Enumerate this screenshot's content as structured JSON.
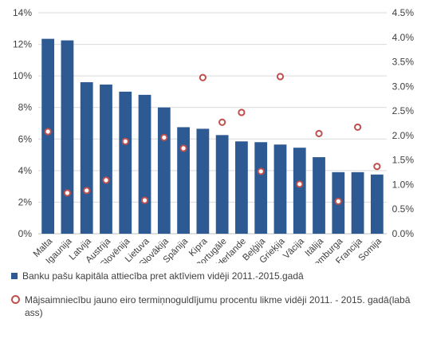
{
  "chart_data": {
    "type": "bar",
    "categories": [
      "Malta",
      "Igaunija",
      "Latvija",
      "Austrija",
      "Slovēnija",
      "Lietuva",
      "Slovākija",
      "Spānija",
      "Kipra",
      "Portugāle",
      "Nīderlande",
      "Beļģija",
      "Grieķija",
      "Vācija",
      "Itālija",
      "Luksemburga",
      "Francija",
      "Somija"
    ],
    "series": [
      {
        "name": "Banku pašu kapitāla attiecība pret aktīviem vidēji 2011.-2015.gadā",
        "kind": "bar",
        "axis": "left",
        "color": "#2e5a94",
        "values": [
          12.35,
          12.25,
          9.6,
          9.45,
          9.0,
          8.8,
          8.0,
          6.75,
          6.65,
          6.25,
          5.85,
          5.8,
          5.65,
          5.45,
          4.85,
          3.9,
          3.9,
          3.75
        ]
      },
      {
        "name": "Mājsaimniecību jauno eiro termiņnoguldījumu procentu likme vidēji 2011. - 2015. gadā(labā ass)",
        "kind": "marker",
        "axis": "right",
        "color": "#c0504d",
        "values": [
          2.08,
          0.83,
          0.88,
          1.09,
          1.88,
          0.68,
          1.96,
          1.74,
          3.18,
          2.27,
          2.47,
          1.27,
          3.2,
          1.01,
          2.04,
          0.66,
          2.17,
          1.37
        ]
      }
    ],
    "y_left": {
      "min": 0,
      "max": 14,
      "step": 2,
      "ticks": [
        "0%",
        "2%",
        "4%",
        "6%",
        "8%",
        "10%",
        "12%",
        "14%"
      ]
    },
    "y_right": {
      "min": 0,
      "max": 4.5,
      "step": 0.5,
      "ticks": [
        "0.0%",
        "0.5%",
        "1.0%",
        "1.5%",
        "2.0%",
        "2.5%",
        "3.0%",
        "3.5%",
        "4.0%",
        "4.5%"
      ]
    },
    "grid": true,
    "legend_position": "bottom"
  }
}
